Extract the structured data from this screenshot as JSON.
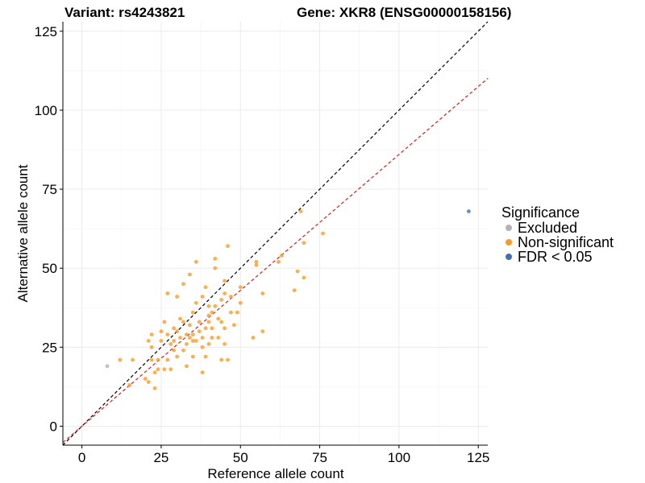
{
  "chart_data": {
    "type": "scatter",
    "title_left": "Variant: rs4243821",
    "title_right": "Gene: XKR8 (ENSG00000158156)",
    "xlabel": "Reference allele count",
    "ylabel": "Alternative allele count",
    "xlim": [
      -6,
      128
    ],
    "ylim": [
      -6,
      128
    ],
    "xticks": [
      0,
      25,
      50,
      75,
      100,
      125
    ],
    "yticks": [
      0,
      25,
      50,
      75,
      100,
      125
    ],
    "grid": true,
    "legend": {
      "title": "Significance",
      "placement": "right",
      "entries": [
        {
          "label": "Excluded",
          "color": "#b3b3b3"
        },
        {
          "label": "Non-significant",
          "color": "#ff9a1f"
        },
        {
          "label": "FDR < 0.05",
          "color": "#3f73b0"
        }
      ]
    },
    "reference_lines": [
      {
        "name": "identity",
        "slope": 1.0,
        "intercept": 0,
        "color": "#000000",
        "dash": "dashed"
      },
      {
        "name": "fit",
        "slope": 0.86,
        "intercept": 0,
        "color": "#e31a1c",
        "dash": "dashed"
      }
    ],
    "series": [
      {
        "name": "Excluded",
        "color": "#b3b3b3",
        "points": [
          [
            8,
            19
          ]
        ]
      },
      {
        "name": "FDR < 0.05",
        "color": "#3f73b0",
        "points": [
          [
            122,
            68
          ]
        ]
      },
      {
        "name": "Non-significant",
        "color": "#ff9a1f",
        "points": [
          [
            12,
            21
          ],
          [
            15,
            13
          ],
          [
            16,
            21
          ],
          [
            20,
            15
          ],
          [
            21,
            14
          ],
          [
            21,
            27
          ],
          [
            22,
            29
          ],
          [
            22,
            25
          ],
          [
            22,
            21
          ],
          [
            23,
            12
          ],
          [
            23,
            17
          ],
          [
            24,
            18
          ],
          [
            24,
            21
          ],
          [
            25,
            30
          ],
          [
            25,
            27
          ],
          [
            26,
            33
          ],
          [
            26,
            18
          ],
          [
            27,
            29
          ],
          [
            27,
            42
          ],
          [
            27,
            21
          ],
          [
            28,
            18
          ],
          [
            28,
            26
          ],
          [
            29,
            31
          ],
          [
            29,
            24
          ],
          [
            29,
            27
          ],
          [
            30,
            41
          ],
          [
            30,
            30
          ],
          [
            30,
            22
          ],
          [
            31,
            28
          ],
          [
            31,
            34
          ],
          [
            32,
            24
          ],
          [
            32,
            45
          ],
          [
            32,
            33
          ],
          [
            33,
            26
          ],
          [
            33,
            19
          ],
          [
            33,
            29
          ],
          [
            34,
            32
          ],
          [
            34,
            28
          ],
          [
            34,
            48
          ],
          [
            35,
            27
          ],
          [
            35,
            36
          ],
          [
            35,
            22
          ],
          [
            35,
            29
          ],
          [
            36,
            39
          ],
          [
            36,
            27
          ],
          [
            36,
            52
          ],
          [
            37,
            30
          ],
          [
            37,
            33
          ],
          [
            38,
            25
          ],
          [
            38,
            17
          ],
          [
            38,
            41
          ],
          [
            38,
            28
          ],
          [
            39,
            31
          ],
          [
            39,
            22
          ],
          [
            39,
            44
          ],
          [
            40,
            35
          ],
          [
            40,
            38
          ],
          [
            40,
            26
          ],
          [
            40,
            33
          ],
          [
            41,
            31
          ],
          [
            41,
            28
          ],
          [
            41,
            36
          ],
          [
            42,
            50
          ],
          [
            42,
            53
          ],
          [
            42,
            38
          ],
          [
            43,
            28
          ],
          [
            43,
            34
          ],
          [
            44,
            40
          ],
          [
            44,
            33
          ],
          [
            44,
            21
          ],
          [
            45,
            42
          ],
          [
            45,
            31
          ],
          [
            45,
            26
          ],
          [
            45,
            46
          ],
          [
            46,
            57
          ],
          [
            46,
            21
          ],
          [
            47,
            36
          ],
          [
            47,
            41
          ],
          [
            48,
            32
          ],
          [
            49,
            36
          ],
          [
            50,
            44
          ],
          [
            50,
            39
          ],
          [
            54,
            28
          ],
          [
            55,
            51
          ],
          [
            55,
            52
          ],
          [
            57,
            30
          ],
          [
            57,
            42
          ],
          [
            62,
            52
          ],
          [
            63,
            54
          ],
          [
            67,
            43
          ],
          [
            68,
            49
          ],
          [
            69,
            68
          ],
          [
            70,
            47
          ],
          [
            70,
            58
          ],
          [
            76,
            61
          ]
        ]
      }
    ]
  }
}
